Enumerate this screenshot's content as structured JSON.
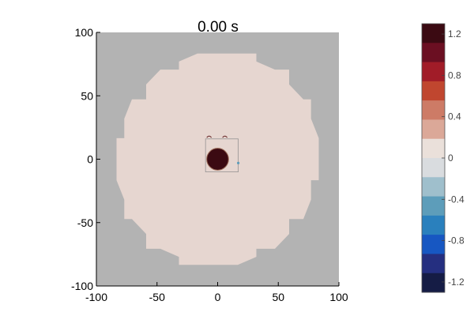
{
  "chart_data": {
    "type": "heatmap",
    "title": "0.00 s",
    "xlabel": "",
    "ylabel": "",
    "xlim": [
      -100,
      100
    ],
    "ylim": [
      -100,
      100
    ],
    "x_ticks": [
      "-100",
      "-50",
      "0",
      "50",
      "100"
    ],
    "y_ticks": [
      "100",
      "50",
      "0",
      "-50",
      "-100"
    ],
    "grid": false,
    "background_color": "#b3b3b3",
    "domain": {
      "shape": "polygon",
      "fill_color": "#e6d6d0",
      "approx_radius": 85,
      "center": [
        0,
        0
      ]
    },
    "hotspot": {
      "center": [
        0,
        0
      ],
      "radius": 9,
      "value": 1.3,
      "color": "#3b0a12"
    },
    "colorbar": {
      "vmin": -1.3,
      "vmax": 1.3,
      "tick_labels": [
        "1.2",
        "0.8",
        "0.4",
        "0",
        "-0.4",
        "-0.8",
        "-1.2"
      ],
      "tick_values": [
        1.2,
        0.8,
        0.4,
        0,
        -0.4,
        -0.8,
        -1.2
      ],
      "colors_top_to_bottom": [
        "#3b0a12",
        "#6b0f22",
        "#a11c28",
        "#c0462f",
        "#cd7b66",
        "#dba898",
        "#eae0da",
        "#d9dcdf",
        "#9fbfcc",
        "#5d9dba",
        "#2a80bd",
        "#1757c2",
        "#252f80",
        "#151c45"
      ]
    }
  }
}
